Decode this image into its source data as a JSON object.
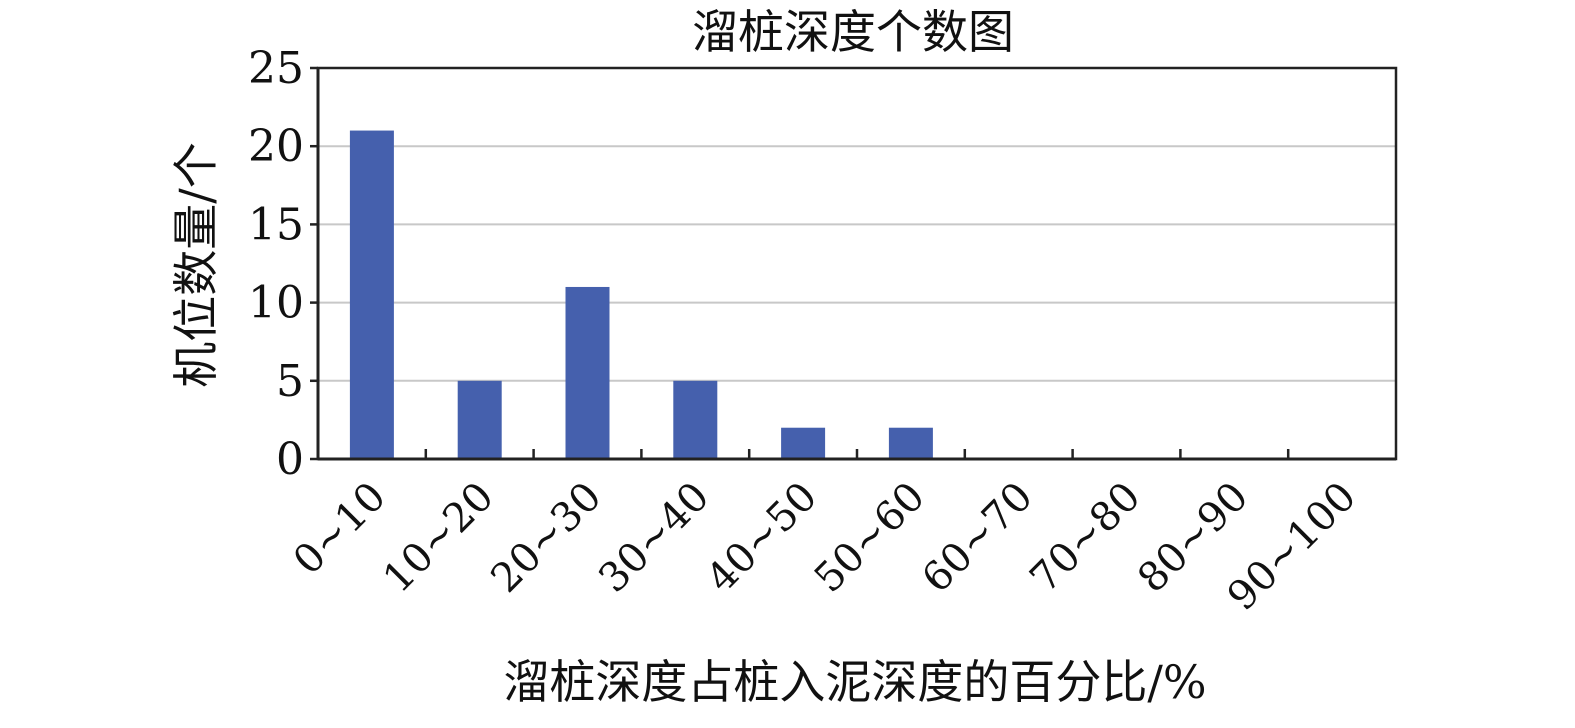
{
  "chart_data": {
    "type": "bar",
    "title": "溜桩深度个数图",
    "xlabel": "溜桩深度占桩入泥深度的百分比/%",
    "ylabel": "机位数量/个",
    "categories": [
      "0~10",
      "10~20",
      "20~30",
      "30~40",
      "40~50",
      "50~60",
      "60~70",
      "70~80",
      "80~90",
      "90~100"
    ],
    "values": [
      21,
      5,
      11,
      5,
      2,
      2,
      0,
      0,
      0,
      0
    ],
    "ylim": [
      0,
      25
    ],
    "yticks": [
      0,
      5,
      10,
      15,
      20,
      25
    ],
    "grid": true,
    "bar_color": "#4560ad",
    "grid_color": "#c8c8c8",
    "axis_color": "#222222"
  }
}
